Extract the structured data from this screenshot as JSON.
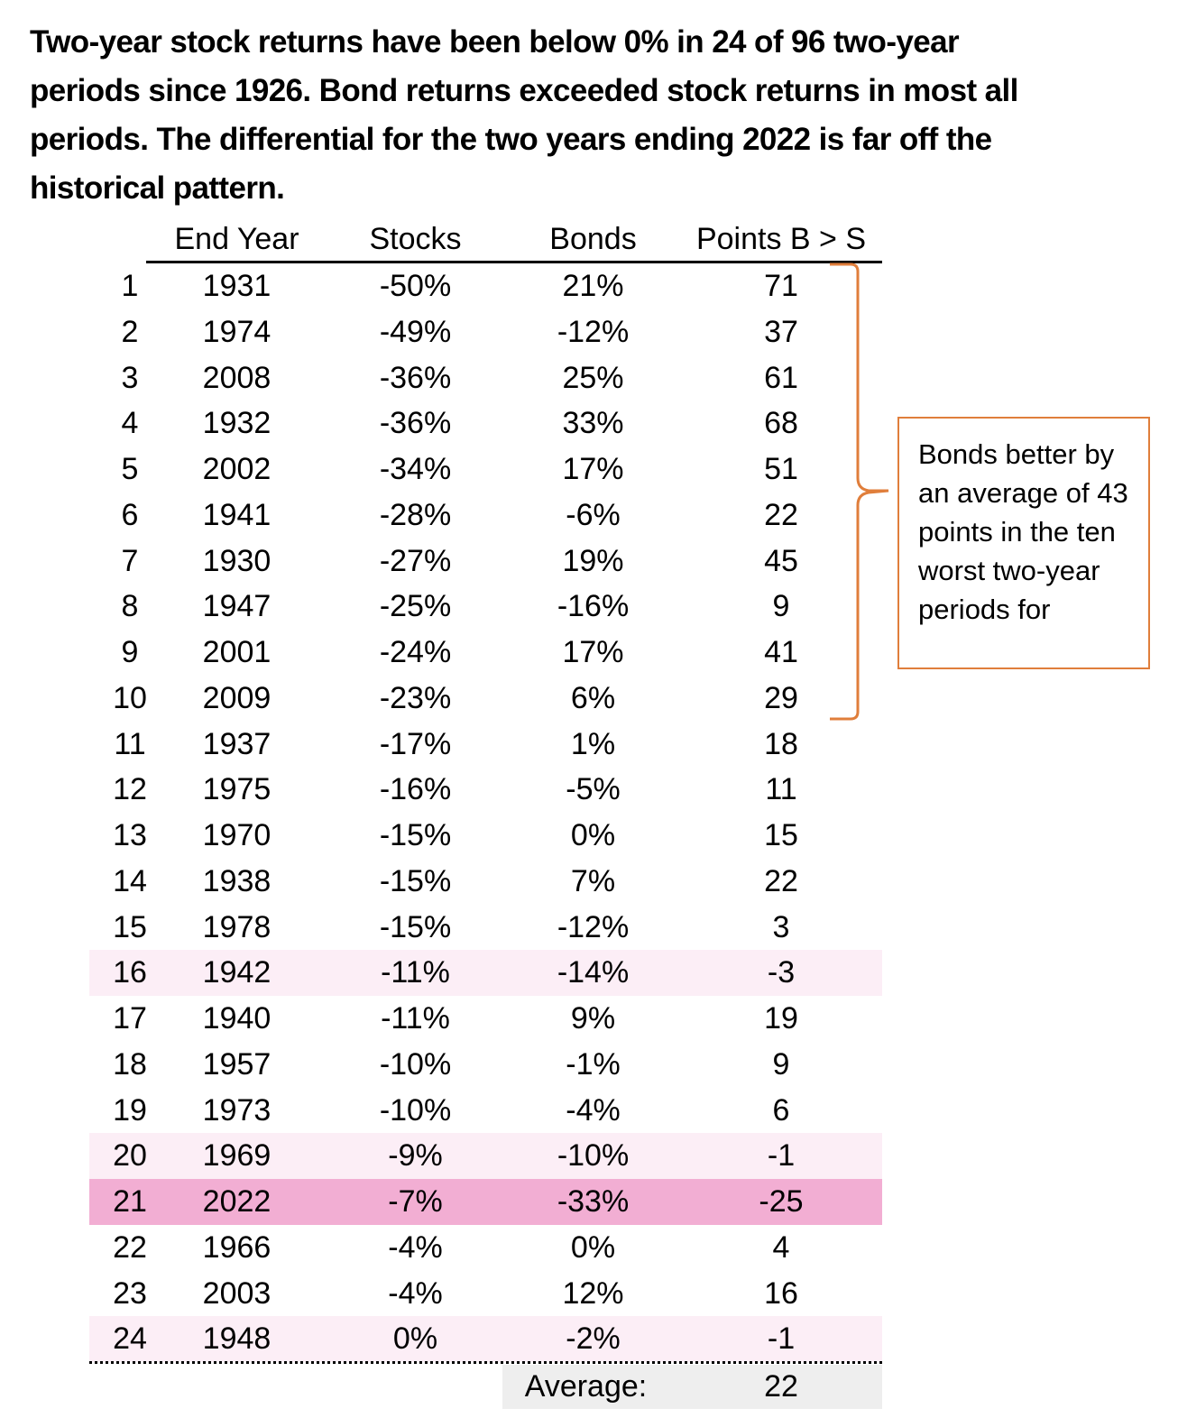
{
  "title": "Two-year stock returns have been below 0% in 24  of 96 two-year periods since 1926. Bond returns exceeded stock returns in most all periods. The differential for the two years ending 2022 is far off the historical pattern.",
  "colors": {
    "highlight_light": "#FCEEF6",
    "highlight_strong": "#F2AED3",
    "bracket": "#E07E3B",
    "average_bg": "#EEEEEE"
  },
  "chart_data": {
    "type": "table",
    "columns": [
      "End Year",
      "Stocks",
      "Bonds",
      "Points B > S"
    ],
    "rows": [
      {
        "rank": "1",
        "year": "1931",
        "stocks": "-50%",
        "bonds": "21%",
        "points": "71",
        "highlight": "none"
      },
      {
        "rank": "2",
        "year": "1974",
        "stocks": "-49%",
        "bonds": "-12%",
        "points": "37",
        "highlight": "none"
      },
      {
        "rank": "3",
        "year": "2008",
        "stocks": "-36%",
        "bonds": "25%",
        "points": "61",
        "highlight": "none"
      },
      {
        "rank": "4",
        "year": "1932",
        "stocks": "-36%",
        "bonds": "33%",
        "points": "68",
        "highlight": "none"
      },
      {
        "rank": "5",
        "year": "2002",
        "stocks": "-34%",
        "bonds": "17%",
        "points": "51",
        "highlight": "none"
      },
      {
        "rank": "6",
        "year": "1941",
        "stocks": "-28%",
        "bonds": "-6%",
        "points": "22",
        "highlight": "none"
      },
      {
        "rank": "7",
        "year": "1930",
        "stocks": "-27%",
        "bonds": "19%",
        "points": "45",
        "highlight": "none"
      },
      {
        "rank": "8",
        "year": "1947",
        "stocks": "-25%",
        "bonds": "-16%",
        "points": "9",
        "highlight": "none"
      },
      {
        "rank": "9",
        "year": "2001",
        "stocks": "-24%",
        "bonds": "17%",
        "points": "41",
        "highlight": "none"
      },
      {
        "rank": "10",
        "year": "2009",
        "stocks": "-23%",
        "bonds": "6%",
        "points": "29",
        "highlight": "none"
      },
      {
        "rank": "11",
        "year": "1937",
        "stocks": "-17%",
        "bonds": "1%",
        "points": "18",
        "highlight": "none"
      },
      {
        "rank": "12",
        "year": "1975",
        "stocks": "-16%",
        "bonds": "-5%",
        "points": "11",
        "highlight": "none"
      },
      {
        "rank": "13",
        "year": "1970",
        "stocks": "-15%",
        "bonds": "0%",
        "points": "15",
        "highlight": "none"
      },
      {
        "rank": "14",
        "year": "1938",
        "stocks": "-15%",
        "bonds": "7%",
        "points": "22",
        "highlight": "none"
      },
      {
        "rank": "15",
        "year": "1978",
        "stocks": "-15%",
        "bonds": "-12%",
        "points": "3",
        "highlight": "none"
      },
      {
        "rank": "16",
        "year": "1942",
        "stocks": "-11%",
        "bonds": "-14%",
        "points": "-3",
        "highlight": "light"
      },
      {
        "rank": "17",
        "year": "1940",
        "stocks": "-11%",
        "bonds": "9%",
        "points": "19",
        "highlight": "none"
      },
      {
        "rank": "18",
        "year": "1957",
        "stocks": "-10%",
        "bonds": "-1%",
        "points": "9",
        "highlight": "none"
      },
      {
        "rank": "19",
        "year": "1973",
        "stocks": "-10%",
        "bonds": "-4%",
        "points": "6",
        "highlight": "none"
      },
      {
        "rank": "20",
        "year": "1969",
        "stocks": "-9%",
        "bonds": "-10%",
        "points": "-1",
        "highlight": "light"
      },
      {
        "rank": "21",
        "year": "2022",
        "stocks": "-7%",
        "bonds": "-33%",
        "points": "-25",
        "highlight": "strong"
      },
      {
        "rank": "22",
        "year": "1966",
        "stocks": "-4%",
        "bonds": "0%",
        "points": "4",
        "highlight": "none"
      },
      {
        "rank": "23",
        "year": "2003",
        "stocks": "-4%",
        "bonds": "12%",
        "points": "16",
        "highlight": "none"
      },
      {
        "rank": "24",
        "year": "1948",
        "stocks": "0%",
        "bonds": "-2%",
        "points": "-1",
        "highlight": "light"
      }
    ],
    "average": {
      "label": "Average:",
      "value": "22"
    },
    "bracket_rows": [
      1,
      10
    ],
    "callout": "Bonds better by an average of 43 points in the ten worst two-year periods for"
  }
}
